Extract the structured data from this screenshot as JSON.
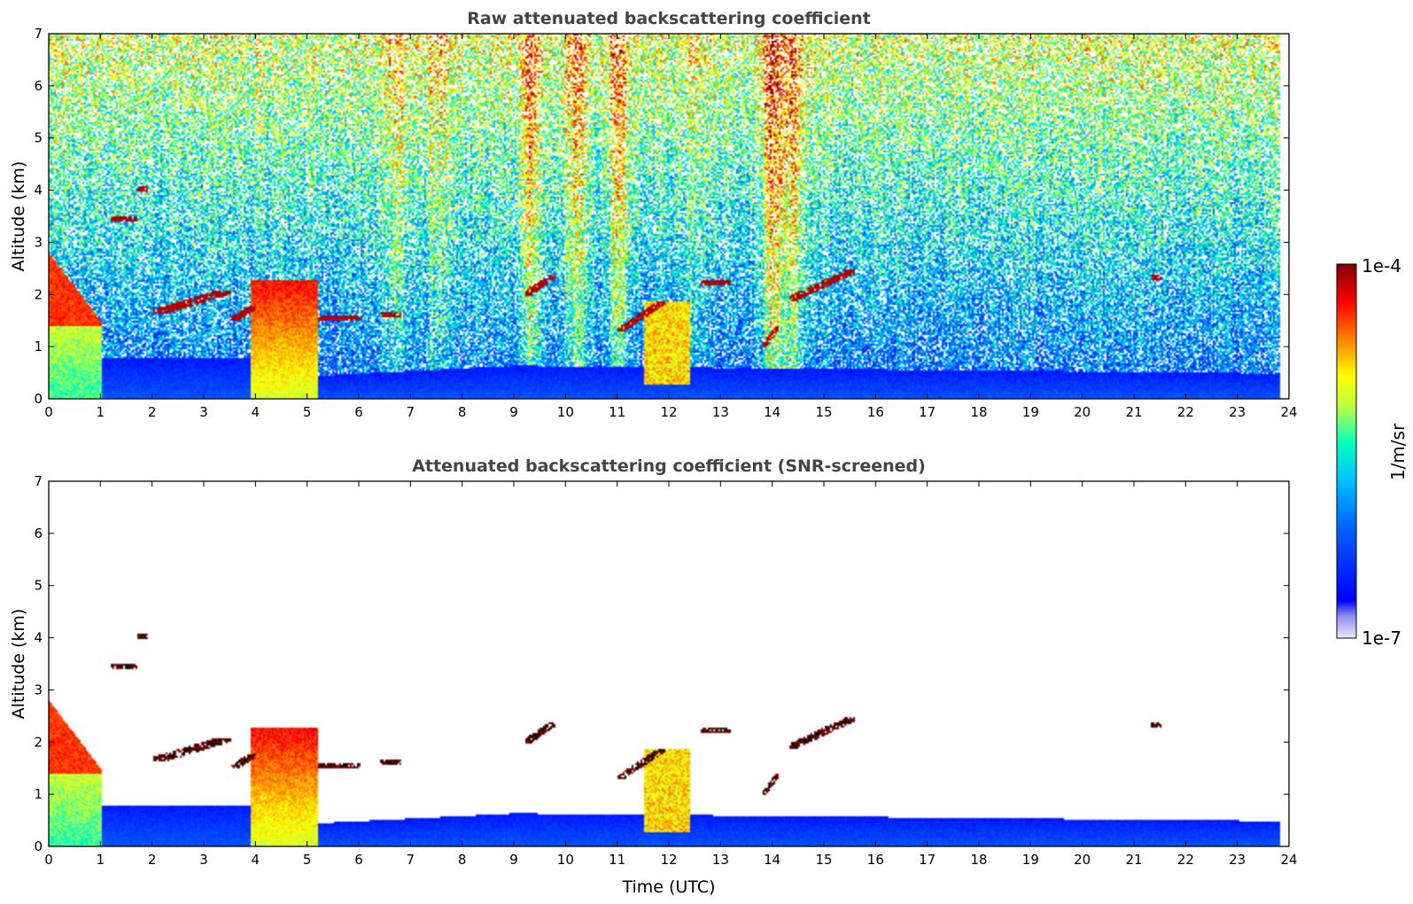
{
  "chart_data": [
    {
      "type": "heatmap",
      "title": "Raw attenuated backscattering coefficient",
      "xlabel": "",
      "ylabel": "Altitude (km)",
      "xlim": [
        0,
        24
      ],
      "ylim": [
        0,
        7
      ],
      "xticks": [
        "0",
        "1",
        "2",
        "3",
        "4",
        "5",
        "6",
        "7",
        "8",
        "9",
        "10",
        "11",
        "12",
        "13",
        "14",
        "15",
        "16",
        "17",
        "18",
        "19",
        "20",
        "21",
        "22",
        "23",
        "24"
      ],
      "yticks": [
        "0",
        "1",
        "2",
        "3",
        "4",
        "5",
        "6",
        "7"
      ],
      "data_end_time": 23.8,
      "features": [
        {
          "name": "boundary layer",
          "x": [
            0,
            23.8
          ],
          "y": [
            0,
            1.0
          ],
          "level": "low"
        },
        {
          "name": "aerosol plume",
          "x": [
            0,
            1.0
          ],
          "y": [
            0,
            2.8
          ],
          "level": "high"
        },
        {
          "name": "aerosol plume",
          "x": [
            3.9,
            5.2
          ],
          "y": [
            0,
            2.3
          ],
          "level": "high"
        },
        {
          "name": "aerosol plume",
          "x": [
            11.5,
            12.4
          ],
          "y": [
            0.3,
            1.9
          ],
          "level": "high"
        },
        {
          "name": "cloud",
          "x": [
            1.2,
            1.7
          ],
          "y": [
            3.4,
            3.5
          ],
          "level": "saturated"
        },
        {
          "name": "cloud",
          "x": [
            1.7,
            1.9
          ],
          "y": [
            4.0,
            4.1
          ],
          "level": "saturated"
        },
        {
          "name": "cloud",
          "x": [
            2.0,
            3.5
          ],
          "y": [
            1.6,
            2.1
          ],
          "level": "saturated"
        },
        {
          "name": "cloud",
          "x": [
            3.5,
            4.0
          ],
          "y": [
            1.5,
            1.8
          ],
          "level": "saturated"
        },
        {
          "name": "cloud",
          "x": [
            5.2,
            6.0
          ],
          "y": [
            1.5,
            1.6
          ],
          "level": "saturated"
        },
        {
          "name": "cloud",
          "x": [
            6.4,
            6.8
          ],
          "y": [
            1.6,
            1.7
          ],
          "level": "saturated"
        },
        {
          "name": "cloud",
          "x": [
            9.2,
            9.8
          ],
          "y": [
            2.0,
            2.4
          ],
          "level": "saturated"
        },
        {
          "name": "cloud",
          "x": [
            11.0,
            11.9
          ],
          "y": [
            1.3,
            1.9
          ],
          "level": "saturated"
        },
        {
          "name": "cloud",
          "x": [
            12.6,
            13.2
          ],
          "y": [
            2.2,
            2.3
          ],
          "level": "saturated"
        },
        {
          "name": "cloud",
          "x": [
            14.3,
            15.6
          ],
          "y": [
            1.9,
            2.5
          ],
          "level": "saturated"
        },
        {
          "name": "cloud",
          "x": [
            21.3,
            21.5
          ],
          "y": [
            2.3,
            2.4
          ],
          "level": "saturated"
        }
      ]
    },
    {
      "type": "heatmap",
      "title": "Attenuated backscattering coefficient (SNR-screened)",
      "xlabel": "Time (UTC)",
      "ylabel": "Altitude (km)",
      "xlim": [
        0,
        24
      ],
      "ylim": [
        0,
        7
      ],
      "xticks": [
        "0",
        "1",
        "2",
        "3",
        "4",
        "5",
        "6",
        "7",
        "8",
        "9",
        "10",
        "11",
        "12",
        "13",
        "14",
        "15",
        "16",
        "17",
        "18",
        "19",
        "20",
        "21",
        "22",
        "23",
        "24"
      ],
      "yticks": [
        "0",
        "1",
        "2",
        "3",
        "4",
        "5",
        "6",
        "7"
      ],
      "screening": "low signal-to-noise pixels removed (white)",
      "data_end_time": 23.8
    }
  ],
  "colorbar": {
    "max_label": "1e-4",
    "min_label": "1e-7",
    "unit_label": "1/m/sr",
    "colormap": "jet",
    "colors": [
      "#e8e8f8",
      "#0000ff",
      "#00bfff",
      "#00ffbf",
      "#bfff40",
      "#ffff00",
      "#ff8000",
      "#ff0000",
      "#800000"
    ]
  }
}
